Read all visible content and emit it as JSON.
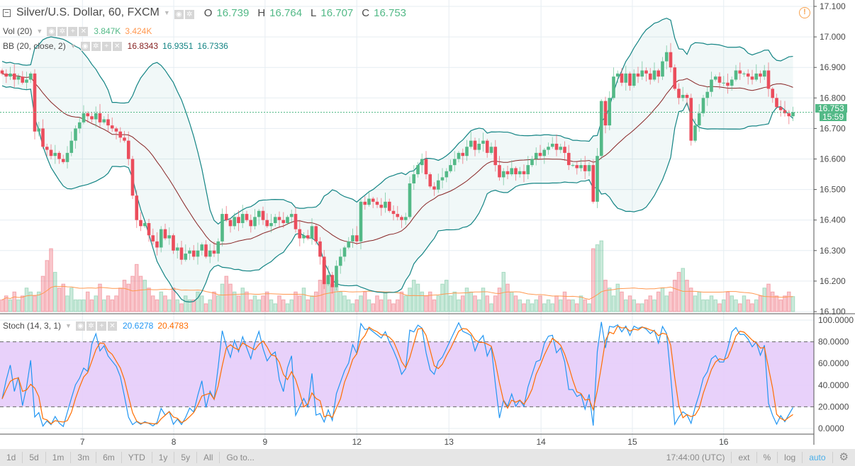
{
  "header": {
    "collapse_icon": "minus-square-icon",
    "title": "Silver/U.S. Dollar, 60, FXCM",
    "o_label": "O",
    "o": "16.739",
    "h_label": "H",
    "h": "16.764",
    "l_label": "L",
    "l": "16.707",
    "c_label": "C",
    "c": "16.753"
  },
  "indicators": {
    "vol": {
      "label": "Vol (20)",
      "v1": "3.847K",
      "v2": "3.424K"
    },
    "bb": {
      "label": "BB (20, close, 2)",
      "basis": "16.8343",
      "upper": "16.9351",
      "lower": "16.7336"
    },
    "stoch": {
      "label": "Stoch (14, 3, 1)",
      "k": "20.6278",
      "d": "20.4783"
    }
  },
  "price_tag": "16.753",
  "countdown": "15:59",
  "toolbar": {
    "ranges": [
      "1d",
      "5d",
      "1m",
      "3m",
      "6m",
      "YTD",
      "1y",
      "5y",
      "All",
      "Go to..."
    ],
    "time": "17:44:00 (UTC)",
    "ext": "ext",
    "pct": "%",
    "log": "log",
    "auto": "auto"
  },
  "colors": {
    "up": "#53b987",
    "down": "#eb4d5c",
    "bb_band": "#138484",
    "bb_basis": "#872323",
    "vol_ma": "#ff9850",
    "stoch_k": "#2196f3",
    "stoch_d": "#ff6d00",
    "stoch_band": "#e6ccfa"
  },
  "chart_data": {
    "type": "candlestick",
    "title": "Silver/U.S. Dollar, 60, FXCM",
    "first_open": 16.89,
    "closes": [
      16.88,
      16.87,
      16.88,
      16.86,
      16.87,
      16.85,
      16.86,
      16.88,
      16.69,
      16.7,
      16.64,
      16.63,
      16.61,
      16.62,
      16.6,
      16.59,
      16.62,
      16.66,
      16.7,
      16.72,
      16.75,
      16.74,
      16.73,
      16.75,
      16.72,
      16.73,
      16.71,
      16.7,
      16.69,
      16.67,
      16.66,
      16.6,
      16.48,
      16.4,
      16.38,
      16.39,
      16.35,
      16.33,
      16.31,
      16.37,
      16.34,
      16.35,
      16.3,
      16.31,
      16.27,
      16.29,
      16.3,
      16.28,
      16.3,
      16.32,
      16.28,
      16.3,
      16.29,
      16.33,
      16.42,
      16.4,
      16.38,
      16.41,
      16.39,
      16.42,
      16.4,
      16.38,
      16.41,
      16.43,
      16.4,
      16.38,
      16.39,
      16.41,
      16.4,
      16.39,
      16.41,
      16.42,
      16.37,
      16.34,
      16.35,
      16.34,
      16.38,
      16.33,
      16.28,
      16.19,
      16.22,
      16.18,
      16.25,
      16.28,
      16.31,
      16.33,
      16.35,
      16.33,
      16.46,
      16.45,
      16.47,
      16.46,
      16.45,
      16.44,
      16.46,
      16.43,
      16.42,
      16.41,
      16.4,
      16.41,
      16.52,
      16.55,
      16.58,
      16.6,
      16.55,
      16.51,
      16.5,
      16.53,
      16.54,
      16.56,
      16.58,
      16.6,
      16.62,
      16.61,
      16.64,
      16.66,
      16.63,
      16.65,
      16.66,
      16.62,
      16.64,
      16.58,
      16.54,
      16.56,
      16.55,
      16.57,
      16.55,
      16.56,
      16.55,
      16.58,
      16.6,
      16.62,
      16.61,
      16.63,
      16.64,
      16.65,
      16.63,
      16.64,
      16.62,
      16.58,
      16.58,
      16.57,
      16.58,
      16.56,
      16.58,
      16.46,
      16.61,
      16.79,
      16.71,
      16.8,
      16.87,
      16.88,
      16.85,
      16.88,
      16.84,
      16.88,
      16.87,
      16.89,
      16.88,
      16.86,
      16.89,
      16.87,
      16.92,
      16.95,
      16.9,
      16.83,
      16.8,
      16.81,
      16.8,
      16.66,
      16.71,
      16.75,
      16.8,
      16.82,
      16.86,
      16.87,
      16.85,
      16.85,
      16.84,
      16.86,
      16.89,
      16.88,
      16.88,
      16.87,
      16.86,
      16.88,
      16.87,
      16.89,
      16.83,
      16.8,
      16.77,
      16.76,
      16.75,
      16.74,
      16.753
    ],
    "volumes_k": [
      3,
      4,
      3,
      5,
      3,
      4,
      6,
      5,
      4,
      5,
      9,
      13,
      16,
      10,
      6,
      7,
      4,
      6,
      3,
      3,
      3,
      5,
      3,
      4,
      7,
      3,
      4,
      3,
      4,
      6,
      8,
      7,
      9,
      12,
      9,
      8,
      6,
      4,
      3,
      5,
      4,
      3,
      6,
      3,
      2,
      4,
      3,
      3,
      5,
      4,
      2,
      3,
      5,
      4,
      7,
      9,
      7,
      5,
      4,
      6,
      5,
      3,
      4,
      3,
      4,
      5,
      3,
      2,
      4,
      3,
      2,
      3,
      5,
      4,
      6,
      3,
      4,
      5,
      8,
      13,
      9,
      7,
      8,
      5,
      4,
      3,
      2,
      3,
      4,
      5,
      3,
      2,
      4,
      3,
      5,
      3,
      2,
      3,
      5,
      4,
      6,
      8,
      7,
      5,
      4,
      5,
      3,
      4,
      7,
      8,
      4,
      5,
      3,
      4,
      6,
      5,
      4,
      3,
      6,
      4,
      2,
      4,
      6,
      10,
      7,
      5,
      4,
      3,
      2,
      3,
      2,
      3,
      4,
      2,
      3,
      2,
      4,
      3,
      5,
      3,
      3,
      2,
      4,
      3,
      2,
      16,
      17,
      18,
      8,
      6,
      4,
      7,
      5,
      3,
      4,
      3,
      2,
      2,
      3,
      4,
      3,
      5,
      6,
      4,
      5,
      8,
      10,
      11,
      8,
      6,
      4,
      5,
      3,
      3,
      4,
      3,
      2,
      3,
      5,
      4,
      3,
      2,
      4,
      3,
      2,
      3,
      4,
      6,
      7,
      5,
      4,
      3,
      4,
      5,
      3.847
    ],
    "price_axis": {
      "min": 16.1,
      "max": 17.1,
      "ticks": [
        "17.100",
        "17.000",
        "16.900",
        "16.800",
        "16.700",
        "16.600",
        "16.500",
        "16.400",
        "16.300",
        "16.200",
        "16.100"
      ]
    },
    "stoch_axis": {
      "min": 0,
      "max": 100,
      "ticks": [
        "100.0000",
        "80.0000",
        "60.0000",
        "40.0000",
        "20.0000",
        "0.0000"
      ],
      "upper_band": 80,
      "lower_band": 20
    },
    "x_labels": [
      {
        "label": "7",
        "bar": 19.7
      },
      {
        "label": "8",
        "bar": 42.1
      },
      {
        "label": "9",
        "bar": 64.5
      },
      {
        "label": "12",
        "bar": 87
      },
      {
        "label": "13",
        "bar": 109.6
      },
      {
        "label": "14",
        "bar": 132.2
      },
      {
        "label": "15",
        "bar": 154.6
      },
      {
        "label": "16",
        "bar": 177
      }
    ],
    "last_price": 16.753,
    "grid": true
  }
}
